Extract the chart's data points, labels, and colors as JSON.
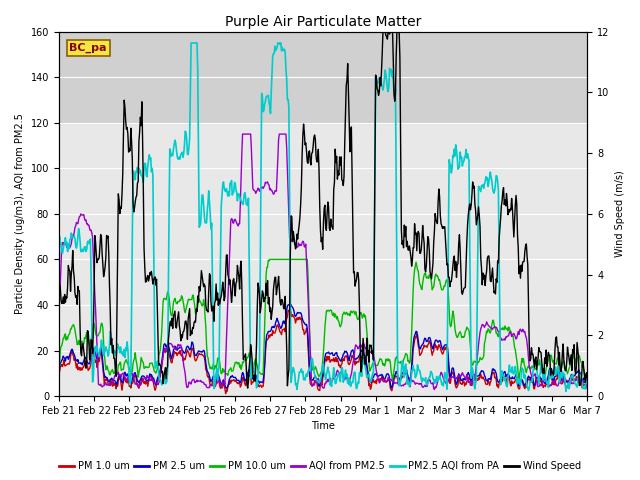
{
  "title": "Purple Air Particulate Matter",
  "xlabel": "Time",
  "ylabel_left": "Particle Density (ug/m3), AQI from PM2.5",
  "ylabel_right": "Wind Speed (m/s)",
  "ylim_left": [
    0,
    160
  ],
  "ylim_right": [
    0,
    12
  ],
  "station_label": "BC_pa",
  "x_tick_labels": [
    "Feb 21",
    "Feb 22",
    "Feb 23",
    "Feb 24",
    "Feb 25",
    "Feb 26",
    "Feb 27",
    "Feb 28",
    "Feb 29",
    "Mar 1",
    "Mar 2",
    "Mar 3",
    "Mar 4",
    "Mar 5",
    "Mar 6",
    "Mar 7"
  ],
  "legend_entries": [
    {
      "label": "PM 1.0 um",
      "color": "#cc0000",
      "lw": 1.0
    },
    {
      "label": "PM 2.5 um",
      "color": "#0000cc",
      "lw": 1.0
    },
    {
      "label": "PM 10.0 um",
      "color": "#00bb00",
      "lw": 1.0
    },
    {
      "label": "AQI from PM2.5",
      "color": "#9900cc",
      "lw": 1.0
    },
    {
      "label": "PM2.5 AQI from PA",
      "color": "#00cccc",
      "lw": 1.2
    },
    {
      "label": "Wind Speed",
      "color": "#000000",
      "lw": 1.0
    }
  ],
  "bg_color": "#ffffff",
  "plot_bg_color": "#e8e8e8",
  "gray_band_color": "#d0d0d0",
  "gray_band": [
    120,
    160
  ],
  "grid_color": "#ffffff",
  "title_fontsize": 10,
  "label_fontsize": 7,
  "tick_fontsize": 7,
  "legend_fontsize": 7
}
